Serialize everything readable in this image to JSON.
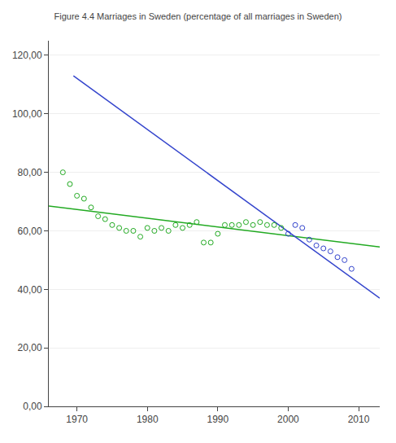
{
  "chart_data": {
    "type": "scatter",
    "title": "Figure 4.4 Marriages in Sweden (percentage of all marriages in Sweden)",
    "xlim": [
      1966,
      2013
    ],
    "xticks": [
      1970,
      1980,
      1990,
      2000,
      2010
    ],
    "ylim": [
      0,
      125
    ],
    "yticks": [
      {
        "value": 0,
        "label": "0,00"
      },
      {
        "value": 20,
        "label": "20,00"
      },
      {
        "value": 40,
        "label": "40,00"
      },
      {
        "value": 60,
        "label": "60,00"
      },
      {
        "value": 80,
        "label": "80,00"
      },
      {
        "value": 100,
        "label": "100,00"
      },
      {
        "value": 120,
        "label": "120,00"
      }
    ],
    "grid": "y",
    "series": [
      {
        "type": "line",
        "color": "#22aa22",
        "x": [
          1966,
          2013
        ],
        "values": [
          68.5,
          54.5
        ]
      },
      {
        "type": "line",
        "color": "#3344cc",
        "x": [
          1969.5,
          2013
        ],
        "values": [
          113,
          37
        ]
      },
      {
        "type": "scatter",
        "marker": "circle-open",
        "color": "#22aa22",
        "x": [
          1968,
          1969,
          1970,
          1971,
          1972,
          1973,
          1974,
          1975,
          1976,
          1977,
          1978,
          1979,
          1980,
          1981,
          1982,
          1983,
          1984,
          1985,
          1986,
          1987,
          1988,
          1989,
          1990,
          1991,
          1992,
          1993,
          1994,
          1995,
          1996,
          1997,
          1998,
          1999
        ],
        "values": [
          80,
          76,
          72,
          71,
          68,
          65,
          64,
          62,
          61,
          60,
          60,
          58,
          61,
          60,
          61,
          60,
          62,
          61,
          62,
          63,
          56,
          56,
          59,
          62,
          62,
          62,
          63,
          62,
          63,
          62,
          62,
          61
        ]
      },
      {
        "type": "scatter",
        "marker": "circle-open",
        "color": "#3344cc",
        "x": [
          2000,
          2001,
          2002,
          2003,
          2004,
          2005,
          2006,
          2007,
          2008,
          2009
        ],
        "values": [
          59,
          62,
          61,
          57,
          55,
          54,
          53,
          51,
          50,
          47
        ]
      }
    ]
  }
}
